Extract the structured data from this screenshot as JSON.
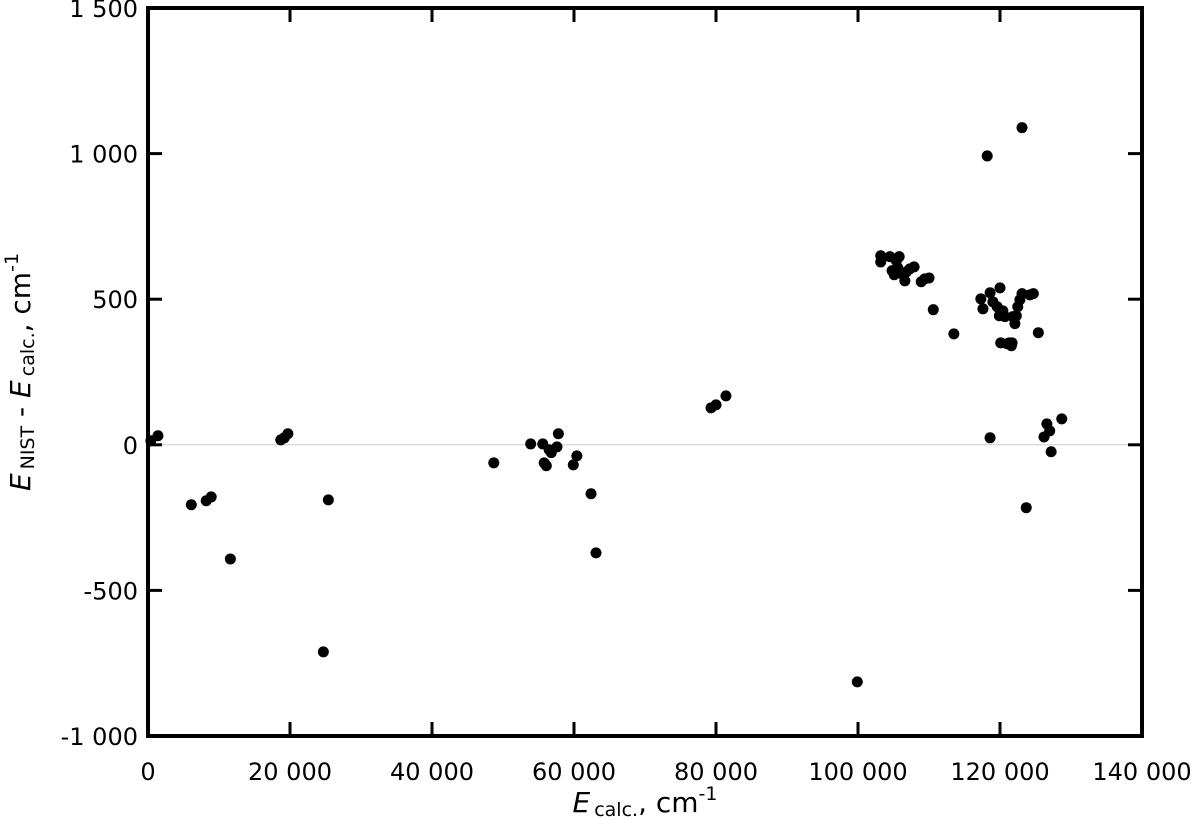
{
  "chart_data": {
    "type": "scatter",
    "x_label": {
      "symbol": "E",
      "subscript": "calc.",
      "unit": ", cm",
      "superscript": "-1"
    },
    "y_label": {
      "symbol": "E",
      "subscript": "NIST",
      "operator": " - ",
      "symbol2": "E",
      "subscript2": "calc.",
      "unit": ", cm",
      "superscript": "-1"
    },
    "color": "#000000",
    "zero_line": true,
    "xlim": [
      0,
      140000
    ],
    "xticks": [
      0,
      {
        "value": 20000,
        "label": "20 000"
      },
      {
        "value": 40000,
        "label": "40 000"
      },
      {
        "value": 60000,
        "label": "60 000"
      },
      {
        "value": 80000,
        "label": "80 000"
      },
      {
        "value": 100000,
        "label": "100 000"
      },
      {
        "value": 120000,
        "label": "120 000"
      },
      {
        "value": 140000,
        "label": "140 000"
      }
    ],
    "ylim": [
      -1000,
      1500
    ],
    "yticks": [
      {
        "value": -1000,
        "label": "-1 000"
      },
      -500,
      0,
      500,
      {
        "value": 1000,
        "label": "1 000"
      },
      {
        "value": 1500,
        "label": "1 500"
      }
    ],
    "x": [
      400,
      1400,
      6100,
      8200,
      8900,
      11600,
      18700,
      19200,
      19700,
      24700,
      25400,
      48700,
      53900,
      55600,
      55800,
      56500,
      56800,
      57600,
      57800,
      56100,
      59900,
      60400,
      62400,
      63100,
      79300,
      80000,
      81400,
      99900,
      103200,
      103200,
      104500,
      104800,
      105100,
      105400,
      105600,
      105800,
      106200,
      106600,
      106800,
      107300,
      107900,
      108900,
      109400,
      110000,
      110600,
      113500,
      117300,
      117600,
      118200,
      118600,
      118600,
      119000,
      119600,
      119900,
      120000,
      120100,
      120400,
      120700,
      121000,
      121300,
      121600,
      121700,
      121800,
      122100,
      122300,
      122500,
      122800,
      123100,
      123100,
      123700,
      124200,
      124700,
      125400,
      126200,
      126600,
      127000,
      127200,
      128700
    ],
    "values": [
      14,
      31,
      -206,
      -192,
      -179,
      -392,
      17,
      24,
      38,
      -711,
      -189,
      -62,
      3,
      3,
      -62,
      -17,
      -27,
      -7,
      38,
      -72,
      -69,
      -38,
      -168,
      -371,
      127,
      137,
      168,
      -814,
      649,
      628,
      646,
      598,
      584,
      632,
      608,
      646,
      587,
      563,
      594,
      604,
      611,
      560,
      570,
      573,
      464,
      381,
      501,
      467,
      992,
      522,
      24,
      491,
      474,
      443,
      539,
      350,
      460,
      440,
      347,
      350,
      340,
      350,
      440,
      416,
      443,
      474,
      498,
      1089,
      519,
      -216,
      515,
      519,
      385,
      27,
      72,
      48,
      -24,
      89
    ]
  }
}
